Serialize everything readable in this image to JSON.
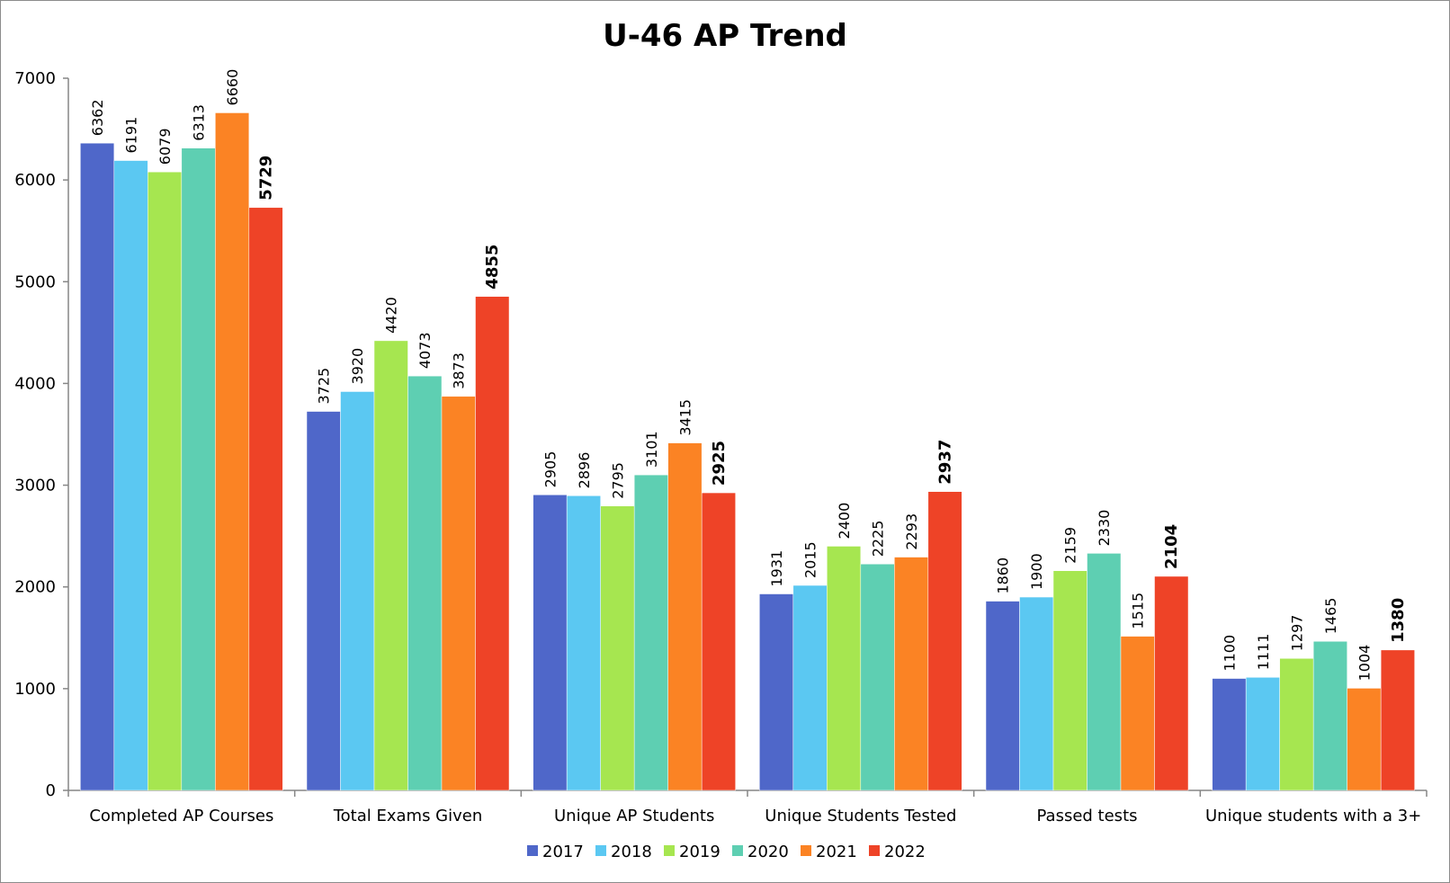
{
  "chart_data": {
    "type": "bar",
    "title": "U-46 AP Trend",
    "xlabel": "",
    "ylabel": "",
    "ylim": [
      0,
      7000
    ],
    "yticks": [
      0,
      1000,
      2000,
      3000,
      4000,
      5000,
      6000,
      7000
    ],
    "grid": false,
    "legend_position": "bottom",
    "categories": [
      "Completed AP Courses",
      "Total Exams Given",
      "Unique AP Students",
      "Unique Students Tested",
      "Passed tests",
      "Unique students with a 3+"
    ],
    "series": [
      {
        "name": "2017",
        "color": "#4F67C9",
        "bold_labels": false,
        "values": [
          6362,
          3725,
          2905,
          1931,
          1860,
          1100
        ]
      },
      {
        "name": "2018",
        "color": "#5BC8F2",
        "bold_labels": false,
        "values": [
          6191,
          3920,
          2896,
          2015,
          1900,
          1111
        ]
      },
      {
        "name": "2019",
        "color": "#A6E650",
        "bold_labels": false,
        "values": [
          6079,
          4420,
          2795,
          2400,
          2159,
          1297
        ]
      },
      {
        "name": "2020",
        "color": "#5ECFB2",
        "bold_labels": false,
        "values": [
          6313,
          4073,
          3101,
          2225,
          2330,
          1465
        ]
      },
      {
        "name": "2021",
        "color": "#FB8324",
        "bold_labels": false,
        "values": [
          6660,
          3873,
          3415,
          2293,
          1515,
          1004
        ]
      },
      {
        "name": "2022",
        "color": "#EE4327",
        "bold_labels": true,
        "values": [
          5729,
          4855,
          2925,
          2937,
          2104,
          1380
        ]
      }
    ]
  }
}
